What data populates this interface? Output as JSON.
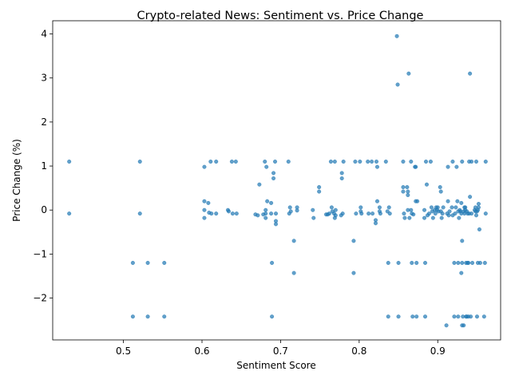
{
  "chart_data": {
    "type": "scatter",
    "title": "Crypto-related News: Sentiment vs. Price Change",
    "xlabel": "Sentiment Score",
    "ylabel": "Price Change (%)",
    "xlim": [
      0.41,
      0.98
    ],
    "ylim": [
      -2.95,
      4.3
    ],
    "xticks": [
      0.5,
      0.6,
      0.7,
      0.8,
      0.9
    ],
    "xtick_labels": [
      "0.5",
      "0.6",
      "0.7",
      "0.8",
      "0.9"
    ],
    "yticks": [
      -2,
      -1,
      0,
      1,
      2,
      3,
      4
    ],
    "ytick_labels": [
      "−2",
      "−1",
      "0",
      "1",
      "2",
      "3",
      "4"
    ],
    "grid": false,
    "marker_color": "#1f77b4",
    "series": [
      {
        "points": [
          [
            0.431,
            1.1
          ],
          [
            0.431,
            -0.08
          ],
          [
            0.512,
            -1.2
          ],
          [
            0.512,
            -2.42
          ],
          [
            0.521,
            1.1
          ],
          [
            0.521,
            -0.08
          ],
          [
            0.531,
            -1.2
          ],
          [
            0.531,
            -2.42
          ],
          [
            0.552,
            -1.2
          ],
          [
            0.552,
            -2.42
          ],
          [
            0.603,
            0.98
          ],
          [
            0.603,
            0.2
          ],
          [
            0.603,
            0.0
          ],
          [
            0.603,
            -0.18
          ],
          [
            0.608,
            0.16
          ],
          [
            0.609,
            -0.06
          ],
          [
            0.611,
            1.1
          ],
          [
            0.612,
            -0.08
          ],
          [
            0.618,
            1.1
          ],
          [
            0.618,
            -0.08
          ],
          [
            0.633,
            0.0
          ],
          [
            0.634,
            -0.03
          ],
          [
            0.638,
            1.1
          ],
          [
            0.639,
            -0.08
          ],
          [
            0.643,
            1.1
          ],
          [
            0.644,
            -0.08
          ],
          [
            0.668,
            -0.1
          ],
          [
            0.671,
            -0.12
          ],
          [
            0.673,
            0.58
          ],
          [
            0.678,
            -0.1
          ],
          [
            0.68,
            1.1
          ],
          [
            0.681,
            0.0
          ],
          [
            0.681,
            -0.08
          ],
          [
            0.681,
            -0.18
          ],
          [
            0.682,
            0.98
          ],
          [
            0.683,
            0.2
          ],
          [
            0.688,
            0.16
          ],
          [
            0.688,
            -0.08
          ],
          [
            0.689,
            -1.2
          ],
          [
            0.689,
            -2.42
          ],
          [
            0.691,
            0.84
          ],
          [
            0.691,
            0.72
          ],
          [
            0.693,
            1.1
          ],
          [
            0.694,
            -0.08
          ],
          [
            0.694,
            -0.25
          ],
          [
            0.694,
            -0.32
          ],
          [
            0.71,
            1.1
          ],
          [
            0.711,
            -0.08
          ],
          [
            0.712,
            0.06
          ],
          [
            0.713,
            -0.03
          ],
          [
            0.717,
            -0.7
          ],
          [
            0.717,
            -1.43
          ],
          [
            0.721,
            0.06
          ],
          [
            0.721,
            -0.01
          ],
          [
            0.741,
            0.0
          ],
          [
            0.742,
            -0.18
          ],
          [
            0.749,
            0.52
          ],
          [
            0.749,
            0.42
          ],
          [
            0.758,
            -0.1
          ],
          [
            0.76,
            -0.1
          ],
          [
            0.762,
            -0.08
          ],
          [
            0.764,
            1.1
          ],
          [
            0.765,
            0.06
          ],
          [
            0.766,
            -0.03
          ],
          [
            0.768,
            -0.08
          ],
          [
            0.769,
            1.1
          ],
          [
            0.769,
            -0.18
          ],
          [
            0.77,
            0.0
          ],
          [
            0.77,
            -0.12
          ],
          [
            0.777,
            -0.12
          ],
          [
            0.778,
            0.84
          ],
          [
            0.778,
            0.72
          ],
          [
            0.779,
            -0.08
          ],
          [
            0.78,
            1.1
          ],
          [
            0.793,
            -0.7
          ],
          [
            0.793,
            -1.43
          ],
          [
            0.795,
            1.1
          ],
          [
            0.796,
            -0.08
          ],
          [
            0.801,
            1.1
          ],
          [
            0.802,
            0.06
          ],
          [
            0.802,
            -0.03
          ],
          [
            0.803,
            -0.08
          ],
          [
            0.811,
            1.1
          ],
          [
            0.812,
            -0.08
          ],
          [
            0.816,
            1.1
          ],
          [
            0.817,
            -0.08
          ],
          [
            0.821,
            -0.23
          ],
          [
            0.821,
            -0.3
          ],
          [
            0.822,
            1.1
          ],
          [
            0.823,
            0.2
          ],
          [
            0.823,
            0.98
          ],
          [
            0.826,
            0.06
          ],
          [
            0.826,
            -0.03
          ],
          [
            0.827,
            -0.08
          ],
          [
            0.834,
            1.1
          ],
          [
            0.836,
            -0.03
          ],
          [
            0.837,
            -1.2
          ],
          [
            0.837,
            -2.42
          ],
          [
            0.838,
            0.06
          ],
          [
            0.839,
            -0.08
          ],
          [
            0.848,
            3.95
          ],
          [
            0.849,
            2.85
          ],
          [
            0.85,
            -1.2
          ],
          [
            0.85,
            -2.42
          ],
          [
            0.856,
            0.52
          ],
          [
            0.856,
            0.42
          ],
          [
            0.856,
            1.1
          ],
          [
            0.857,
            -0.08
          ],
          [
            0.858,
            -0.18
          ],
          [
            0.861,
            0.52
          ],
          [
            0.862,
            0.42
          ],
          [
            0.862,
            0.34
          ],
          [
            0.862,
            0.0
          ],
          [
            0.863,
            3.1
          ],
          [
            0.864,
            -0.18
          ],
          [
            0.866,
            0.0
          ],
          [
            0.866,
            1.1
          ],
          [
            0.867,
            -0.08
          ],
          [
            0.867,
            -1.2
          ],
          [
            0.868,
            -2.42
          ],
          [
            0.869,
            -0.1
          ],
          [
            0.871,
            0.98
          ],
          [
            0.872,
            0.2
          ],
          [
            0.872,
            0.98
          ],
          [
            0.873,
            -1.2
          ],
          [
            0.873,
            -2.42
          ],
          [
            0.874,
            0.2
          ],
          [
            0.883,
            0.0
          ],
          [
            0.883,
            -0.18
          ],
          [
            0.884,
            -1.2
          ],
          [
            0.884,
            -2.42
          ],
          [
            0.885,
            1.1
          ],
          [
            0.886,
            0.58
          ],
          [
            0.887,
            -0.12
          ],
          [
            0.889,
            -0.08
          ],
          [
            0.891,
            1.1
          ],
          [
            0.892,
            0.06
          ],
          [
            0.893,
            -0.03
          ],
          [
            0.894,
            -0.18
          ],
          [
            0.896,
            0.0
          ],
          [
            0.897,
            -0.08
          ],
          [
            0.898,
            0.06
          ],
          [
            0.899,
            0.0
          ],
          [
            0.9,
            0.06
          ],
          [
            0.901,
            -0.03
          ],
          [
            0.903,
            0.52
          ],
          [
            0.904,
            0.42
          ],
          [
            0.904,
            -0.03
          ],
          [
            0.905,
            -0.18
          ],
          [
            0.906,
            -0.08
          ],
          [
            0.907,
            0.06
          ],
          [
            0.911,
            -2.62
          ],
          [
            0.912,
            -0.08
          ],
          [
            0.913,
            0.2
          ],
          [
            0.913,
            0.98
          ],
          [
            0.914,
            -0.12
          ],
          [
            0.915,
            -0.03
          ],
          [
            0.918,
            0.06
          ],
          [
            0.919,
            -0.12
          ],
          [
            0.919,
            1.1
          ],
          [
            0.921,
            -1.2
          ],
          [
            0.921,
            -2.42
          ],
          [
            0.922,
            -0.08
          ],
          [
            0.923,
            0.06
          ],
          [
            0.924,
            0.98
          ],
          [
            0.925,
            0.2
          ],
          [
            0.926,
            -0.03
          ],
          [
            0.926,
            -1.2
          ],
          [
            0.926,
            -2.42
          ],
          [
            0.927,
            -0.18
          ],
          [
            0.928,
            0.0
          ],
          [
            0.929,
            -0.03
          ],
          [
            0.93,
            -0.08
          ],
          [
            0.93,
            0.16
          ],
          [
            0.93,
            -1.43
          ],
          [
            0.931,
            -0.7
          ],
          [
            0.931,
            -2.62
          ],
          [
            0.931,
            1.1
          ],
          [
            0.931,
            -1.2
          ],
          [
            0.932,
            -2.42
          ],
          [
            0.933,
            -2.62
          ],
          [
            0.933,
            -0.03
          ],
          [
            0.934,
            0.06
          ],
          [
            0.934,
            -0.08
          ],
          [
            0.935,
            0.0
          ],
          [
            0.935,
            0.06
          ],
          [
            0.936,
            -1.2
          ],
          [
            0.936,
            -2.42
          ],
          [
            0.937,
            -0.03
          ],
          [
            0.937,
            -2.42
          ],
          [
            0.938,
            -1.2
          ],
          [
            0.938,
            -0.08
          ],
          [
            0.939,
            -1.2
          ],
          [
            0.939,
            -2.42
          ],
          [
            0.94,
            1.1
          ],
          [
            0.94,
            -0.08
          ],
          [
            0.941,
            0.3
          ],
          [
            0.941,
            3.1
          ],
          [
            0.942,
            -2.42
          ],
          [
            0.943,
            1.1
          ],
          [
            0.943,
            -0.08
          ],
          [
            0.944,
            -1.2
          ],
          [
            0.947,
            0.0
          ],
          [
            0.948,
            -0.03
          ],
          [
            0.948,
            0.06
          ],
          [
            0.949,
            -0.12
          ],
          [
            0.949,
            1.1
          ],
          [
            0.95,
            -0.03
          ],
          [
            0.95,
            -2.42
          ],
          [
            0.951,
            -1.2
          ],
          [
            0.951,
            0.0
          ],
          [
            0.952,
            0.06
          ],
          [
            0.952,
            0.14
          ],
          [
            0.953,
            -0.44
          ],
          [
            0.954,
            -1.2
          ],
          [
            0.959,
            -2.42
          ],
          [
            0.96,
            -1.2
          ],
          [
            0.961,
            1.1
          ],
          [
            0.961,
            -0.08
          ]
        ]
      }
    ]
  }
}
